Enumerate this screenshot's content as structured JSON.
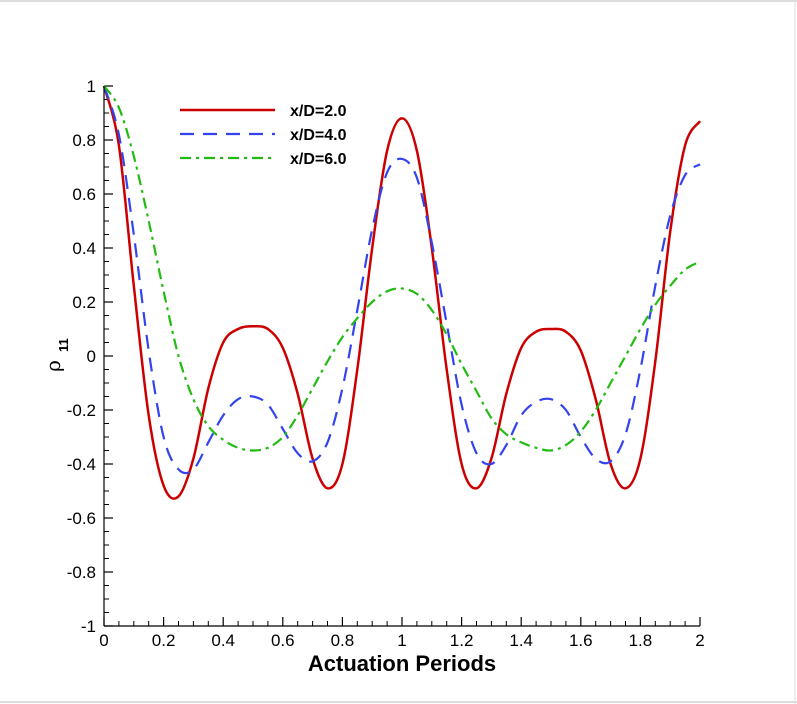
{
  "chart_data": {
    "type": "line",
    "title": "",
    "xlabel": "Actuation Periods",
    "ylabel": {
      "main": "ρ",
      "sub": "11"
    },
    "xlim": [
      0,
      2
    ],
    "ylim": [
      -1,
      1
    ],
    "x_ticks": [
      "0",
      "0.2",
      "0.4",
      "0.6",
      "0.8",
      "1",
      "1.2",
      "1.4",
      "1.6",
      "1.8",
      "2"
    ],
    "y_ticks": [
      "-1",
      "-0.8",
      "-0.6",
      "-0.4",
      "-0.2",
      "0",
      "0.2",
      "0.4",
      "0.6",
      "0.8",
      "1"
    ],
    "grid": false,
    "legend_position": "top-left",
    "series": [
      {
        "name": "x/D=2.0",
        "color": "#cc0000",
        "dash": "solid",
        "x": [
          0,
          0.05,
          0.1,
          0.15,
          0.2,
          0.25,
          0.3,
          0.35,
          0.4,
          0.45,
          0.5,
          0.55,
          0.6,
          0.65,
          0.7,
          0.75,
          0.8,
          0.85,
          0.9,
          0.95,
          1.0,
          1.05,
          1.1,
          1.15,
          1.2,
          1.25,
          1.3,
          1.35,
          1.4,
          1.45,
          1.5,
          1.55,
          1.6,
          1.65,
          1.7,
          1.75,
          1.8,
          1.85,
          1.9,
          1.95,
          2.0
        ],
        "y": [
          1.0,
          0.78,
          0.26,
          -0.22,
          -0.48,
          -0.52,
          -0.38,
          -0.12,
          0.05,
          0.1,
          0.11,
          0.1,
          0.03,
          -0.14,
          -0.38,
          -0.49,
          -0.4,
          -0.05,
          0.4,
          0.76,
          0.88,
          0.76,
          0.4,
          -0.05,
          -0.4,
          -0.49,
          -0.38,
          -0.14,
          0.03,
          0.09,
          0.1,
          0.09,
          0.02,
          -0.16,
          -0.4,
          -0.49,
          -0.38,
          -0.02,
          0.46,
          0.78,
          0.87
        ]
      },
      {
        "name": "x/D=4.0",
        "color": "#3344ee",
        "dash": "dashed",
        "x": [
          0,
          0.05,
          0.1,
          0.15,
          0.2,
          0.25,
          0.3,
          0.35,
          0.4,
          0.45,
          0.5,
          0.55,
          0.6,
          0.65,
          0.7,
          0.75,
          0.8,
          0.85,
          0.9,
          0.95,
          1.0,
          1.05,
          1.1,
          1.15,
          1.2,
          1.25,
          1.3,
          1.35,
          1.4,
          1.45,
          1.5,
          1.55,
          1.6,
          1.65,
          1.7,
          1.75,
          1.8,
          1.85,
          1.9,
          1.95,
          2.0
        ],
        "y": [
          1.0,
          0.82,
          0.45,
          0.02,
          -0.3,
          -0.42,
          -0.42,
          -0.32,
          -0.22,
          -0.16,
          -0.15,
          -0.18,
          -0.27,
          -0.36,
          -0.39,
          -0.32,
          -0.12,
          0.17,
          0.47,
          0.68,
          0.73,
          0.66,
          0.42,
          0.12,
          -0.18,
          -0.36,
          -0.4,
          -0.33,
          -0.22,
          -0.17,
          -0.16,
          -0.2,
          -0.3,
          -0.38,
          -0.39,
          -0.29,
          -0.05,
          0.26,
          0.52,
          0.67,
          0.71
        ]
      },
      {
        "name": "x/D=6.0",
        "color": "#22bb11",
        "dash": "dashdot",
        "x": [
          0,
          0.05,
          0.1,
          0.15,
          0.2,
          0.25,
          0.3,
          0.35,
          0.4,
          0.45,
          0.5,
          0.55,
          0.6,
          0.65,
          0.7,
          0.75,
          0.8,
          0.85,
          0.9,
          0.95,
          1.0,
          1.05,
          1.1,
          1.15,
          1.2,
          1.25,
          1.3,
          1.35,
          1.4,
          1.45,
          1.5,
          1.55,
          1.6,
          1.65,
          1.7,
          1.75,
          1.8,
          1.85,
          1.9,
          1.95,
          2.0
        ],
        "y": [
          1.0,
          0.92,
          0.74,
          0.5,
          0.24,
          0.0,
          -0.16,
          -0.26,
          -0.31,
          -0.34,
          -0.35,
          -0.34,
          -0.3,
          -0.22,
          -0.12,
          -0.02,
          0.07,
          0.14,
          0.2,
          0.24,
          0.25,
          0.23,
          0.17,
          0.08,
          -0.03,
          -0.13,
          -0.23,
          -0.29,
          -0.32,
          -0.34,
          -0.35,
          -0.33,
          -0.28,
          -0.2,
          -0.1,
          0.0,
          0.1,
          0.19,
          0.26,
          0.32,
          0.35
        ]
      }
    ]
  }
}
